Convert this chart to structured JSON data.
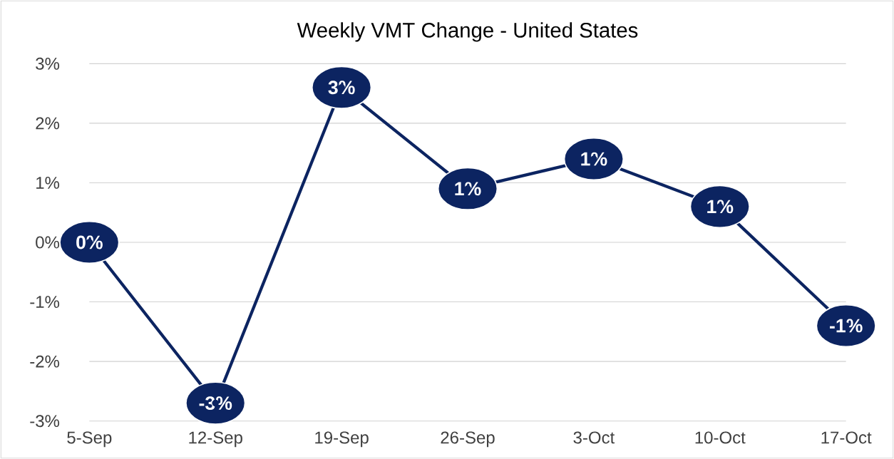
{
  "chart_data": {
    "type": "line",
    "title": "Weekly VMT Change - United States",
    "categories": [
      "5-Sep",
      "12-Sep",
      "19-Sep",
      "26-Sep",
      "3-Oct",
      "10-Oct",
      "17-Oct"
    ],
    "series": [
      {
        "color": "#0c2461",
        "values": [
          0,
          -2.7,
          2.6,
          0.9,
          1.4,
          0.6,
          -1.4
        ],
        "value_labels": [
          "0%",
          "-3%",
          "3%",
          "1%",
          "1%",
          "1%",
          "-1%"
        ]
      }
    ],
    "ylim": [
      -3,
      3
    ],
    "yticks": [
      {
        "value": -3,
        "label": "-3%"
      },
      {
        "value": -2,
        "label": "-2%"
      },
      {
        "value": -1,
        "label": "-1%"
      },
      {
        "value": 0,
        "label": "0%"
      },
      {
        "value": 1,
        "label": "1%"
      },
      {
        "value": 2,
        "label": "2%"
      },
      {
        "value": 3,
        "label": "3%"
      }
    ],
    "grid": "y",
    "marker": "circle",
    "line_style": "solid"
  }
}
